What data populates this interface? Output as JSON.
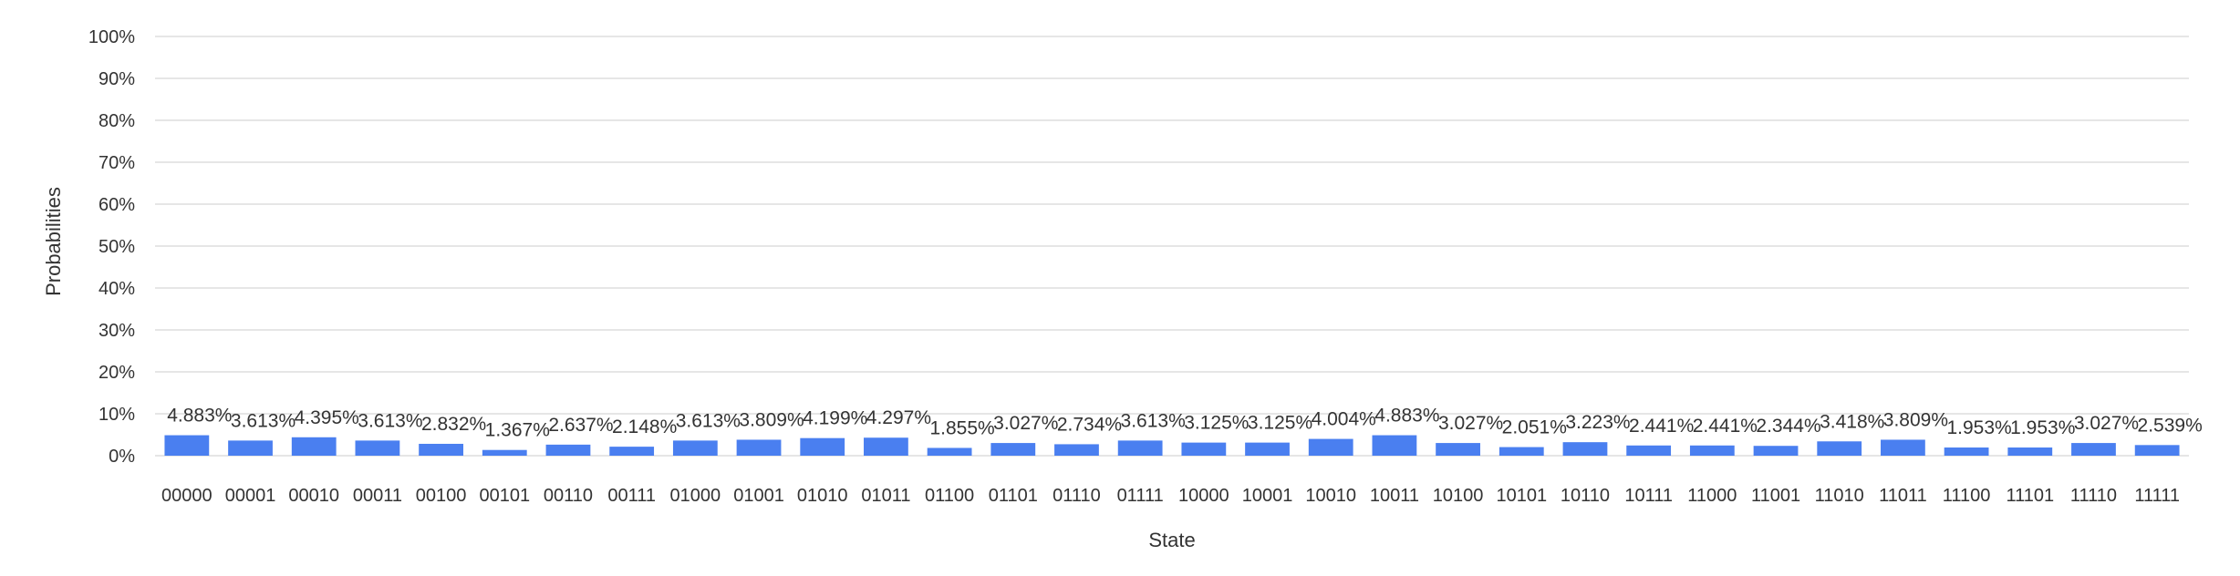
{
  "chart_data": {
    "type": "bar",
    "xlabel": "State",
    "ylabel": "Probabilities",
    "ylim": [
      0,
      100
    ],
    "y_ticks": [
      "0%",
      "10%",
      "20%",
      "30%",
      "40%",
      "50%",
      "60%",
      "70%",
      "80%",
      "90%",
      "100%"
    ],
    "grid": true,
    "legend": "none",
    "bar_color": "#4a7ff0",
    "categories": [
      "00000",
      "00001",
      "00010",
      "00011",
      "00100",
      "00101",
      "00110",
      "00111",
      "01000",
      "01001",
      "01010",
      "01011",
      "01100",
      "01101",
      "01110",
      "01111",
      "10000",
      "10001",
      "10010",
      "10011",
      "10100",
      "10101",
      "10110",
      "10111",
      "11000",
      "11001",
      "11010",
      "11011",
      "11100",
      "11101",
      "11110",
      "11111"
    ],
    "values": [
      4.883,
      3.613,
      4.395,
      3.613,
      2.832,
      1.367,
      2.637,
      2.148,
      3.613,
      3.809,
      4.199,
      4.297,
      1.855,
      3.027,
      2.734,
      3.613,
      3.125,
      3.125,
      4.004,
      4.883,
      3.027,
      2.051,
      3.223,
      2.441,
      2.441,
      2.344,
      3.418,
      3.809,
      1.953,
      1.953,
      3.027,
      2.539
    ],
    "data_labels": [
      "4.883%",
      "3.613%",
      "4.395%",
      "3.613%",
      "2.832%",
      "1.367%",
      "2.637%",
      "2.148%",
      "3.613%",
      "3.809%",
      "4.199%",
      "4.297%",
      "1.855%",
      "3.027%",
      "2.734%",
      "3.613%",
      "3.125%",
      "3.125%",
      "4.004%",
      "4.883%",
      "3.027%",
      "2.051%",
      "3.223%",
      "2.441%",
      "2.441%",
      "2.344%",
      "3.418%",
      "3.809%",
      "1.953%",
      "1.953%",
      "3.027%",
      "2.539%"
    ]
  }
}
